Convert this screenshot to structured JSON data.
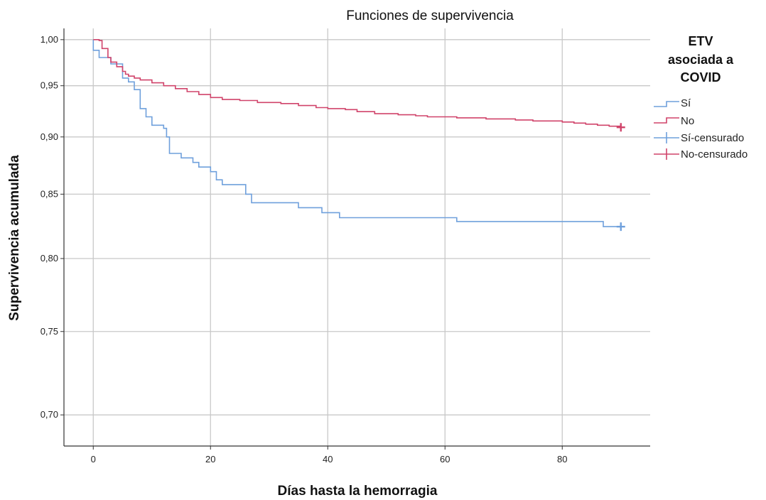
{
  "chart_data": {
    "type": "line",
    "title": "Funciones de supervivencia",
    "xlabel": "Días hasta la hemorragia",
    "ylabel": "Supervivencia acumulada",
    "xlim": [
      -5,
      95
    ],
    "ylim": [
      0.683,
      1.013
    ],
    "x_ticks": [
      0,
      20,
      40,
      60,
      80
    ],
    "x_tick_labels": [
      "0",
      "20",
      "40",
      "60",
      "80"
    ],
    "y_ticks": [
      0.7,
      0.75,
      0.8,
      0.85,
      0.9,
      0.95,
      1.0
    ],
    "y_tick_labels": [
      "0,70",
      "0,75",
      "0,80",
      "0,85",
      "0,90",
      "0,95",
      "1,00"
    ],
    "y_scale": "ratio",
    "grid": true,
    "legend": {
      "title_lines": [
        "ETV",
        "asociada a",
        "COVID"
      ],
      "position": "right",
      "entries": [
        "Sí",
        "No",
        "Sí-censurado",
        "No-censurado"
      ]
    },
    "series": [
      {
        "name": "Sí",
        "color": "#6fa0dc",
        "step": true,
        "points": [
          [
            0,
            1.0
          ],
          [
            0,
            0.988
          ],
          [
            1,
            0.98
          ],
          [
            3,
            0.973
          ],
          [
            5,
            0.962
          ],
          [
            5,
            0.958
          ],
          [
            6,
            0.954
          ],
          [
            7,
            0.946
          ],
          [
            8,
            0.927
          ],
          [
            9,
            0.919
          ],
          [
            10,
            0.911
          ],
          [
            12,
            0.908
          ],
          [
            12.5,
            0.9
          ],
          [
            13,
            0.885
          ],
          [
            15,
            0.881
          ],
          [
            17,
            0.877
          ],
          [
            18,
            0.873
          ],
          [
            20,
            0.869
          ],
          [
            21,
            0.862
          ],
          [
            22,
            0.858
          ],
          [
            26,
            0.85
          ],
          [
            27,
            0.843
          ],
          [
            35,
            0.839
          ],
          [
            39,
            0.835
          ],
          [
            42,
            0.831
          ],
          [
            62,
            0.828
          ],
          [
            87,
            0.824
          ],
          [
            90,
            0.824
          ]
        ],
        "censored": [
          [
            90,
            0.824
          ]
        ]
      },
      {
        "name": "No",
        "color": "#d0436a",
        "step": true,
        "points": [
          [
            0,
            1.0
          ],
          [
            1,
            0.999
          ],
          [
            1.5,
            0.99
          ],
          [
            2.5,
            0.98
          ],
          [
            3,
            0.975
          ],
          [
            4,
            0.97
          ],
          [
            5,
            0.965
          ],
          [
            5.5,
            0.962
          ],
          [
            6,
            0.96
          ],
          [
            7,
            0.958
          ],
          [
            8,
            0.956
          ],
          [
            10,
            0.953
          ],
          [
            12,
            0.95
          ],
          [
            14,
            0.947
          ],
          [
            16,
            0.944
          ],
          [
            18,
            0.941
          ],
          [
            20,
            0.938
          ],
          [
            22,
            0.936
          ],
          [
            25,
            0.935
          ],
          [
            28,
            0.933
          ],
          [
            32,
            0.932
          ],
          [
            35,
            0.93
          ],
          [
            38,
            0.928
          ],
          [
            40,
            0.927
          ],
          [
            43,
            0.926
          ],
          [
            45,
            0.924
          ],
          [
            48,
            0.922
          ],
          [
            52,
            0.921
          ],
          [
            55,
            0.92
          ],
          [
            57,
            0.919
          ],
          [
            62,
            0.918
          ],
          [
            67,
            0.917
          ],
          [
            72,
            0.916
          ],
          [
            75,
            0.915
          ],
          [
            80,
            0.914
          ],
          [
            82,
            0.913
          ],
          [
            84,
            0.912
          ],
          [
            86,
            0.911
          ],
          [
            88,
            0.91
          ],
          [
            90,
            0.909
          ]
        ],
        "censored": [
          [
            90,
            0.909
          ]
        ]
      }
    ]
  }
}
